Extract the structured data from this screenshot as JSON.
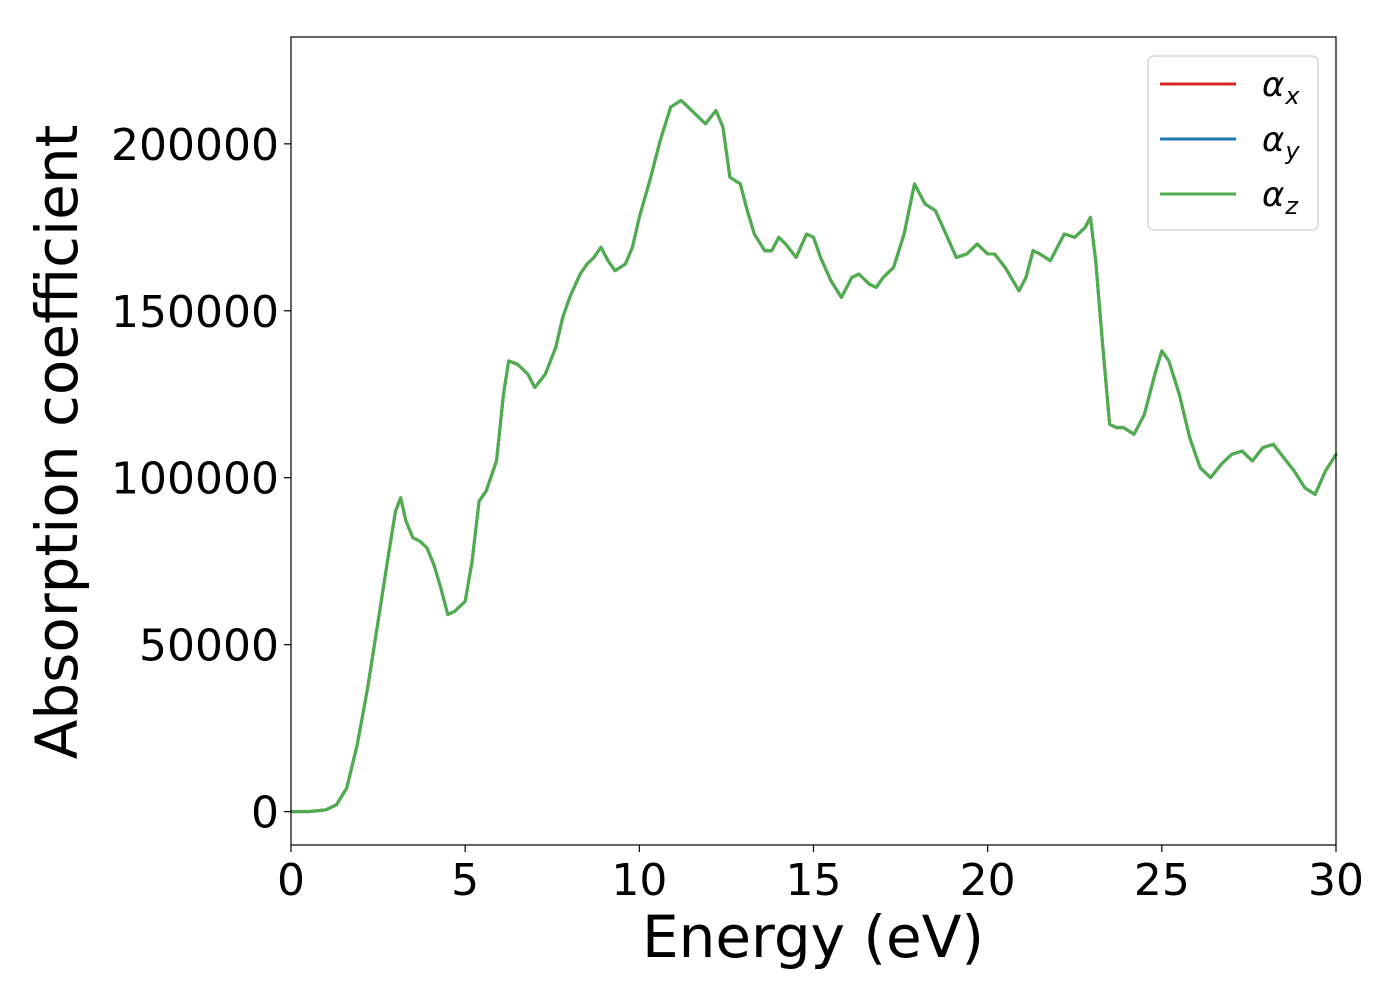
{
  "chart_data": {
    "type": "line",
    "xlabel": "Energy (eV)",
    "ylabel": "Absorption coefficient",
    "xlim": [
      0,
      30
    ],
    "ylim": [
      -10000,
      232000
    ],
    "xticks": [
      0,
      5,
      10,
      15,
      20,
      25,
      30
    ],
    "yticks": [
      0,
      50000,
      100000,
      150000,
      200000
    ],
    "xtick_labels": [
      "0",
      "5",
      "10",
      "15",
      "20",
      "25",
      "30"
    ],
    "ytick_labels": [
      "0",
      "50000",
      "100000",
      "150000",
      "200000"
    ],
    "grid": false,
    "legend_position": "top-right",
    "legend": [
      {
        "symbol": "α",
        "subscript": "x",
        "color": "#d62728"
      },
      {
        "symbol": "α",
        "subscript": "y",
        "color": "#1f77b4"
      },
      {
        "symbol": "α",
        "subscript": "z",
        "color": "#4daf4a"
      }
    ],
    "x": [
      0,
      0.5,
      1.0,
      1.3,
      1.6,
      1.9,
      2.2,
      2.5,
      2.8,
      3.0,
      3.15,
      3.3,
      3.5,
      3.7,
      3.9,
      4.1,
      4.3,
      4.5,
      4.7,
      5.0,
      5.2,
      5.4,
      5.6,
      5.9,
      6.1,
      6.25,
      6.5,
      6.8,
      7.0,
      7.3,
      7.6,
      7.8,
      8.0,
      8.3,
      8.5,
      8.7,
      8.9,
      9.1,
      9.3,
      9.6,
      9.8,
      10.0,
      10.3,
      10.6,
      10.9,
      11.2,
      11.4,
      11.6,
      11.9,
      12.2,
      12.4,
      12.6,
      12.9,
      13.1,
      13.3,
      13.6,
      13.8,
      14.0,
      14.2,
      14.5,
      14.8,
      15.0,
      15.2,
      15.5,
      15.8,
      16.1,
      16.3,
      16.6,
      16.8,
      17.0,
      17.3,
      17.6,
      17.9,
      18.2,
      18.5,
      18.8,
      19.1,
      19.4,
      19.7,
      20.0,
      20.2,
      20.5,
      20.9,
      21.1,
      21.3,
      21.5,
      21.8,
      22.0,
      22.2,
      22.5,
      22.8,
      22.95,
      23.1,
      23.3,
      23.5,
      23.7,
      23.9,
      24.2,
      24.5,
      24.8,
      25.0,
      25.2,
      25.5,
      25.8,
      26.1,
      26.4,
      26.7,
      27.0,
      27.3,
      27.6,
      27.9,
      28.2,
      28.5,
      28.8,
      29.1,
      29.4,
      29.7,
      30.0
    ],
    "series": [
      {
        "name": "αx",
        "color": "#d62728",
        "values": [
          0,
          0,
          500,
          2000,
          7000,
          20000,
          37000,
          57000,
          77000,
          90000,
          94000,
          87000,
          82000,
          81000,
          79000,
          74000,
          67000,
          59000,
          60000,
          63000,
          75000,
          93000,
          96000,
          105000,
          125000,
          135000,
          134000,
          131000,
          127000,
          131000,
          139000,
          148000,
          154000,
          161000,
          164000,
          166000,
          169000,
          165000,
          162000,
          164000,
          169000,
          178000,
          189000,
          201000,
          211000,
          213000,
          211000,
          209000,
          206000,
          210000,
          205000,
          190000,
          188000,
          180000,
          173000,
          168000,
          168000,
          172000,
          170000,
          166000,
          173000,
          172000,
          166000,
          159000,
          154000,
          160000,
          161000,
          158000,
          157000,
          160000,
          163000,
          173000,
          188000,
          182000,
          180000,
          173000,
          166000,
          167000,
          170000,
          167000,
          167000,
          163000,
          156000,
          160000,
          168000,
          167000,
          165000,
          169000,
          173000,
          172000,
          175000,
          178000,
          165000,
          140000,
          116000,
          115000,
          115000,
          113000,
          119000,
          131000,
          138000,
          135000,
          125000,
          112000,
          103000,
          100000,
          104000,
          107000,
          108000,
          105000,
          109000,
          110000,
          106000,
          102000,
          97000,
          95000,
          102000,
          107000
        ]
      },
      {
        "name": "αy",
        "color": "#1f77b4",
        "values": [
          0,
          0,
          500,
          2000,
          7000,
          20000,
          37000,
          57000,
          77000,
          90000,
          94000,
          87000,
          82000,
          81000,
          79000,
          74000,
          67000,
          59000,
          60000,
          63000,
          75000,
          93000,
          96000,
          105000,
          125000,
          135000,
          134000,
          131000,
          127000,
          131000,
          139000,
          148000,
          154000,
          161000,
          164000,
          166000,
          169000,
          165000,
          162000,
          164000,
          169000,
          178000,
          189000,
          201000,
          211000,
          213000,
          211000,
          209000,
          206000,
          210000,
          205000,
          190000,
          188000,
          180000,
          173000,
          168000,
          168000,
          172000,
          170000,
          166000,
          173000,
          172000,
          166000,
          159000,
          154000,
          160000,
          161000,
          158000,
          157000,
          160000,
          163000,
          173000,
          188000,
          182000,
          180000,
          173000,
          166000,
          167000,
          170000,
          167000,
          167000,
          163000,
          156000,
          160000,
          168000,
          167000,
          165000,
          169000,
          173000,
          172000,
          175000,
          178000,
          165000,
          140000,
          116000,
          115000,
          115000,
          113000,
          119000,
          131000,
          138000,
          135000,
          125000,
          112000,
          103000,
          100000,
          104000,
          107000,
          108000,
          105000,
          109000,
          110000,
          106000,
          102000,
          97000,
          95000,
          102000,
          107000
        ]
      },
      {
        "name": "αz",
        "color": "#4daf4a",
        "values": [
          0,
          0,
          500,
          2000,
          7000,
          20000,
          37000,
          57000,
          77000,
          90000,
          94000,
          87000,
          82000,
          81000,
          79000,
          74000,
          67000,
          59000,
          60000,
          63000,
          75000,
          93000,
          96000,
          105000,
          125000,
          135000,
          134000,
          131000,
          127000,
          131000,
          139000,
          148000,
          154000,
          161000,
          164000,
          166000,
          169000,
          165000,
          162000,
          164000,
          169000,
          178000,
          189000,
          201000,
          211000,
          213000,
          211000,
          209000,
          206000,
          210000,
          205000,
          190000,
          188000,
          180000,
          173000,
          168000,
          168000,
          172000,
          170000,
          166000,
          173000,
          172000,
          166000,
          159000,
          154000,
          160000,
          161000,
          158000,
          157000,
          160000,
          163000,
          173000,
          188000,
          182000,
          180000,
          173000,
          166000,
          167000,
          170000,
          167000,
          167000,
          163000,
          156000,
          160000,
          168000,
          167000,
          165000,
          169000,
          173000,
          172000,
          175000,
          178000,
          165000,
          140000,
          116000,
          115000,
          115000,
          113000,
          119000,
          131000,
          138000,
          135000,
          125000,
          112000,
          103000,
          100000,
          104000,
          107000,
          108000,
          105000,
          109000,
          110000,
          106000,
          102000,
          97000,
          95000,
          102000,
          107000
        ]
      }
    ]
  }
}
